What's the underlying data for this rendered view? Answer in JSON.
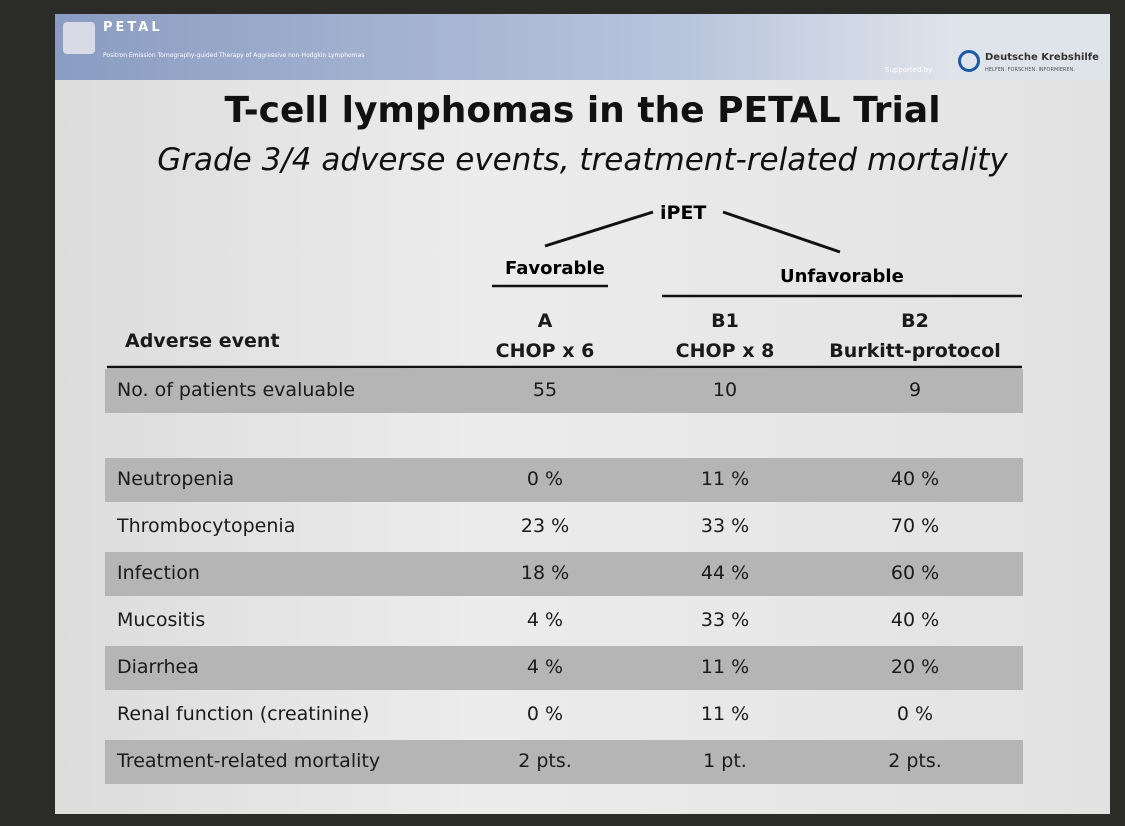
{
  "header": {
    "logo": "PETAL",
    "subtitle": "Positron Emission Tomography-guided Therapy of Aggressive non-Hodgkin Lymphomas",
    "supported_by": "Supported by",
    "sponsor": "Deutsche Krebshilfe",
    "sponsor_tagline": "HELFEN. FORSCHEN. INFORMIEREN."
  },
  "title": "T-cell lymphomas in the PETAL Trial",
  "subtitle": "Grade 3/4 adverse events, treatment-related mortality",
  "ipet": {
    "label": "iPET",
    "favorable": "Favorable",
    "unfavorable": "Unfavorable"
  },
  "table": {
    "columns": [
      [
        "Adverse event"
      ],
      [
        "A",
        "CHOP x 6"
      ],
      [
        "B1",
        "CHOP x 8"
      ],
      [
        "B2",
        "Burkitt-protocol"
      ]
    ],
    "patients": [
      "No. of patients evaluable",
      "55",
      "10",
      "9"
    ],
    "rows": [
      [
        "Neutropenia",
        "0 %",
        "11 %",
        "40 %"
      ],
      [
        "Thrombocytopenia",
        "23 %",
        "33 %",
        "70 %"
      ],
      [
        "Infection",
        "18 %",
        "44 %",
        "60 %"
      ],
      [
        "Mucositis",
        "4 %",
        "33 %",
        "40 %"
      ],
      [
        "Diarrhea",
        "4 %",
        "11 %",
        "20 %"
      ],
      [
        "Renal function (creatinine)",
        "0 %",
        "11 %",
        "0 %"
      ],
      [
        "Treatment-related mortality",
        "2 pts.",
        "1 pt.",
        "2 pts."
      ]
    ]
  }
}
